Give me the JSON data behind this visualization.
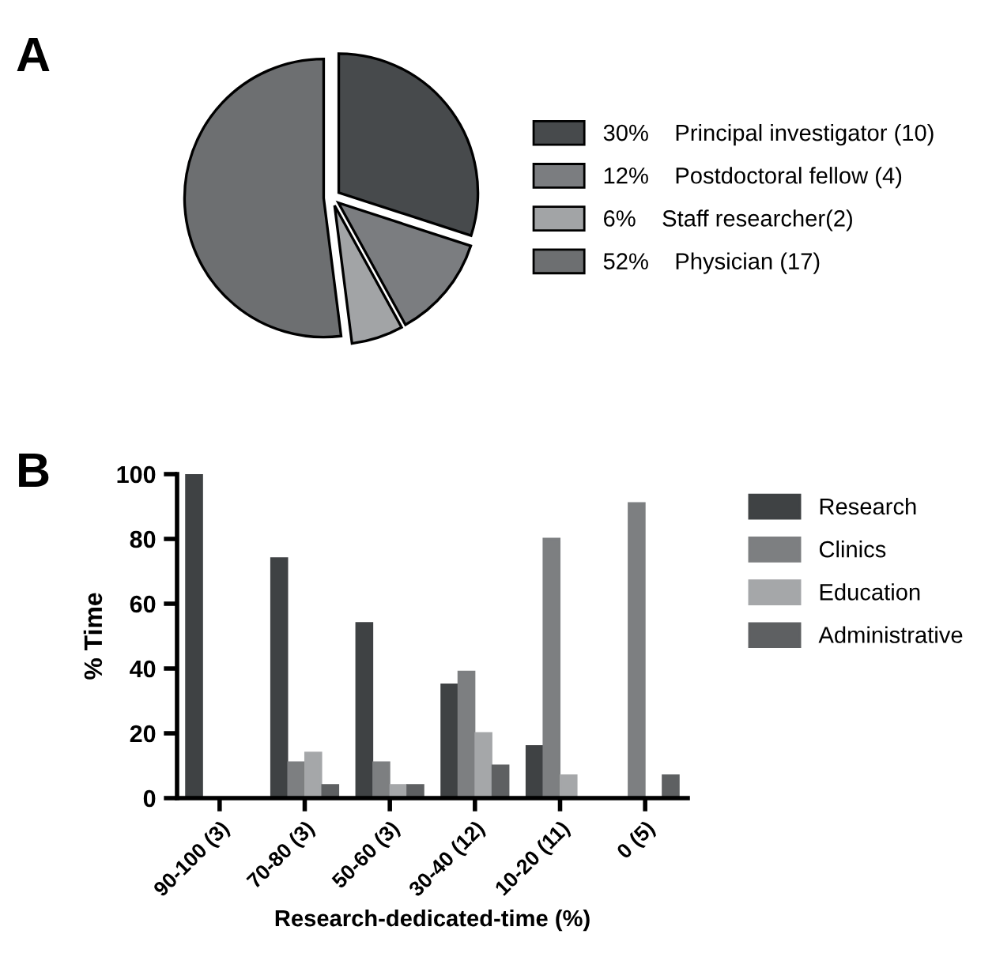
{
  "chart_data": [
    {
      "type": "pie",
      "annotations": [
        "A"
      ],
      "categories": [
        "Principal investigator (10)",
        "Postdoctoral fellow (4)",
        "Staff researcher(2)",
        "Physician (17)"
      ],
      "values": [
        30,
        12,
        6,
        52
      ],
      "value_labels": [
        "30%",
        "12%",
        "6%",
        "52%"
      ],
      "colors": [
        "#474a4c",
        "#7b7d80",
        "#a2a4a6",
        "#6d6f71"
      ],
      "legend": "right"
    },
    {
      "type": "bar",
      "annotations": [
        "B"
      ],
      "xlabel": "Research-dedicated-time (%)",
      "ylabel": "% Time",
      "categories": [
        "90-100 (3)",
        "70-80 (3)",
        "50-60 (3)",
        "30-40 (12)",
        "10-20 (11)",
        "0 (5)"
      ],
      "series": [
        {
          "name": "Research",
          "color": "#3f4244",
          "values": [
            100,
            74,
            54,
            35,
            16,
            0
          ]
        },
        {
          "name": "Clinics",
          "color": "#7d7f81",
          "values": [
            0,
            11,
            11,
            39,
            80,
            91
          ]
        },
        {
          "name": "Education",
          "color": "#a5a7a9",
          "values": [
            0,
            14,
            4,
            20,
            7,
            0
          ]
        },
        {
          "name": "Administrative",
          "color": "#5e6062",
          "values": [
            0,
            4,
            4,
            10,
            0,
            7
          ]
        }
      ],
      "ylim": [
        0,
        100
      ],
      "yticks": [
        0,
        20,
        40,
        60,
        80,
        100
      ],
      "grid": false,
      "legend": "right"
    }
  ]
}
